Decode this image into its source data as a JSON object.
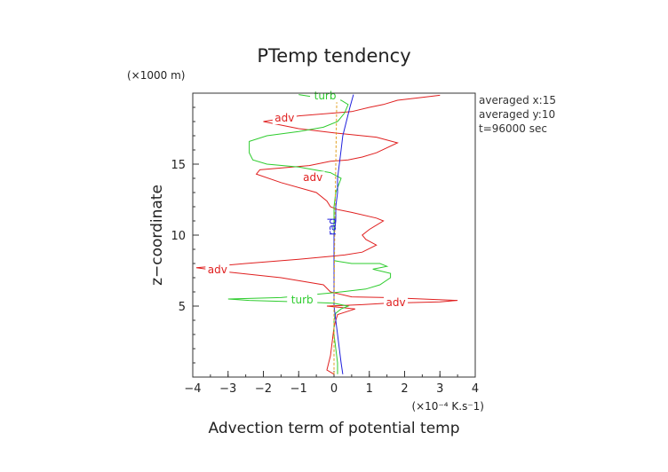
{
  "chart_data": {
    "type": "line",
    "title": "PTemp tendency",
    "xlabel": "Advection term of potential temp",
    "ylabel": "z−coordinate",
    "x_unit": "(×10⁻⁴ K.s⁻1)",
    "y_unit": "(×1000 m)",
    "xlim": [
      -4,
      4
    ],
    "ylim": [
      0,
      20
    ],
    "x_ticks": [
      "−4",
      "−3",
      "−2",
      "−1",
      "0",
      "1",
      "2",
      "3",
      "4"
    ],
    "y_ticks": [
      "5",
      "10",
      "15"
    ],
    "grid": false,
    "info": [
      "averaged  x:15",
      "averaged  y:10",
      "t=96000 sec"
    ],
    "series": [
      {
        "name": "adv",
        "color": "#e02020",
        "points": [
          [
            0.0,
            0.2
          ],
          [
            -0.2,
            0.5
          ],
          [
            -0.15,
            1.0
          ],
          [
            -0.1,
            1.5
          ],
          [
            -0.05,
            2.5
          ],
          [
            0.0,
            3.5
          ],
          [
            0.05,
            4.0
          ],
          [
            0.1,
            4.4
          ],
          [
            0.6,
            4.8
          ],
          [
            -0.2,
            5.0
          ],
          [
            0.8,
            5.1
          ],
          [
            1.5,
            5.2
          ],
          [
            3.0,
            5.3
          ],
          [
            3.5,
            5.4
          ],
          [
            2.5,
            5.5
          ],
          [
            1.5,
            5.6
          ],
          [
            0.5,
            5.65
          ],
          [
            -0.1,
            6.0
          ],
          [
            -0.3,
            6.5
          ],
          [
            -1.5,
            7.0
          ],
          [
            -3.0,
            7.4
          ],
          [
            -3.9,
            7.7
          ],
          [
            -2.5,
            8.0
          ],
          [
            -1.0,
            8.3
          ],
          [
            0.3,
            8.6
          ],
          [
            0.8,
            8.8
          ],
          [
            1.2,
            9.3
          ],
          [
            0.9,
            9.7
          ],
          [
            0.8,
            10.0
          ],
          [
            1.0,
            10.4
          ],
          [
            1.4,
            11.0
          ],
          [
            1.2,
            11.2
          ],
          [
            0.5,
            11.6
          ],
          [
            0.1,
            11.8
          ],
          [
            -0.1,
            12.0
          ],
          [
            -0.2,
            12.4
          ],
          [
            -0.5,
            13.0
          ],
          [
            -1.5,
            13.7
          ],
          [
            -2.2,
            14.3
          ],
          [
            -2.1,
            14.6
          ],
          [
            -0.7,
            14.9
          ],
          [
            -0.1,
            15.2
          ],
          [
            0.4,
            15.3
          ],
          [
            0.8,
            15.5
          ],
          [
            1.2,
            15.8
          ],
          [
            1.8,
            16.5
          ],
          [
            1.2,
            16.9
          ],
          [
            0.0,
            17.2
          ],
          [
            -1.0,
            17.5
          ],
          [
            -2.0,
            18.0
          ],
          [
            -1.0,
            18.4
          ],
          [
            0.5,
            18.7
          ],
          [
            1.0,
            19.0
          ],
          [
            1.4,
            19.2
          ],
          [
            1.8,
            19.5
          ],
          [
            2.5,
            19.7
          ],
          [
            3.0,
            19.85
          ]
        ],
        "labels": [
          {
            "text": "adv",
            "x": -3.3,
            "y": 7.3
          },
          {
            "text": "adv",
            "x": 1.75,
            "y": 5.0
          },
          {
            "text": "adv",
            "x": -0.6,
            "y": 13.8
          },
          {
            "text": "adv",
            "x": -1.4,
            "y": 18.0
          }
        ]
      },
      {
        "name": "turb",
        "color": "#2ecc2e",
        "points": [
          [
            0.1,
            0.2
          ],
          [
            0.1,
            1.0
          ],
          [
            0.05,
            2.0
          ],
          [
            0.0,
            3.0
          ],
          [
            0.0,
            4.0
          ],
          [
            0.05,
            4.5
          ],
          [
            0.2,
            4.8
          ],
          [
            0.4,
            5.0
          ],
          [
            0.0,
            5.2
          ],
          [
            -1.0,
            5.3
          ],
          [
            -2.4,
            5.4
          ],
          [
            -3.0,
            5.5
          ],
          [
            -1.5,
            5.6
          ],
          [
            -0.2,
            5.9
          ],
          [
            0.2,
            6.0
          ],
          [
            0.9,
            6.2
          ],
          [
            1.3,
            6.5
          ],
          [
            1.6,
            7.0
          ],
          [
            1.6,
            7.3
          ],
          [
            1.1,
            7.6
          ],
          [
            1.5,
            7.8
          ],
          [
            1.3,
            8.0
          ],
          [
            0.5,
            8.0
          ],
          [
            0.0,
            8.2
          ],
          [
            0.0,
            9.0
          ],
          [
            0.0,
            10.0
          ],
          [
            0.0,
            11.0
          ],
          [
            0.0,
            12.0
          ],
          [
            0.05,
            13.0
          ],
          [
            0.2,
            14.0
          ],
          [
            -0.1,
            14.4
          ],
          [
            -1.0,
            14.8
          ],
          [
            -1.9,
            15.0
          ],
          [
            -2.3,
            15.3
          ],
          [
            -2.4,
            15.8
          ],
          [
            -2.4,
            16.6
          ],
          [
            -1.9,
            17.0
          ],
          [
            -1.0,
            17.3
          ],
          [
            -0.3,
            17.6
          ],
          [
            0.1,
            18.0
          ],
          [
            0.3,
            18.6
          ],
          [
            0.4,
            19.2
          ],
          [
            0.2,
            19.5
          ],
          [
            -0.5,
            19.7
          ],
          [
            -1.0,
            19.9
          ]
        ],
        "labels": [
          {
            "text": "turb",
            "x": -0.9,
            "y": 5.2
          },
          {
            "text": "turb",
            "x": -0.25,
            "y": 19.55
          }
        ]
      },
      {
        "name": "rad",
        "color": "#2020dd",
        "points": [
          [
            0.25,
            0.2
          ],
          [
            0.2,
            1.0
          ],
          [
            0.15,
            2.0
          ],
          [
            0.1,
            3.0
          ],
          [
            0.05,
            4.0
          ],
          [
            0.0,
            5.0
          ],
          [
            0.0,
            6.0
          ],
          [
            0.0,
            7.0
          ],
          [
            0.0,
            8.0
          ],
          [
            0.0,
            9.0
          ],
          [
            0.0,
            10.0
          ],
          [
            0.05,
            11.0
          ],
          [
            0.05,
            12.0
          ],
          [
            0.1,
            13.0
          ],
          [
            0.1,
            14.0
          ],
          [
            0.15,
            15.0
          ],
          [
            0.2,
            16.0
          ],
          [
            0.25,
            17.0
          ],
          [
            0.35,
            18.0
          ],
          [
            0.45,
            19.0
          ],
          [
            0.55,
            19.9
          ]
        ],
        "labels": [
          {
            "text": "rad",
            "x": 0.05,
            "y": 10.6
          }
        ]
      },
      {
        "name": "",
        "color": "#e0a020",
        "points": [
          [
            0.0,
            0.2
          ],
          [
            0.0,
            5.0
          ],
          [
            0.02,
            10.0
          ],
          [
            0.05,
            15.0
          ],
          [
            0.08,
            19.9
          ]
        ],
        "labels": []
      }
    ]
  }
}
